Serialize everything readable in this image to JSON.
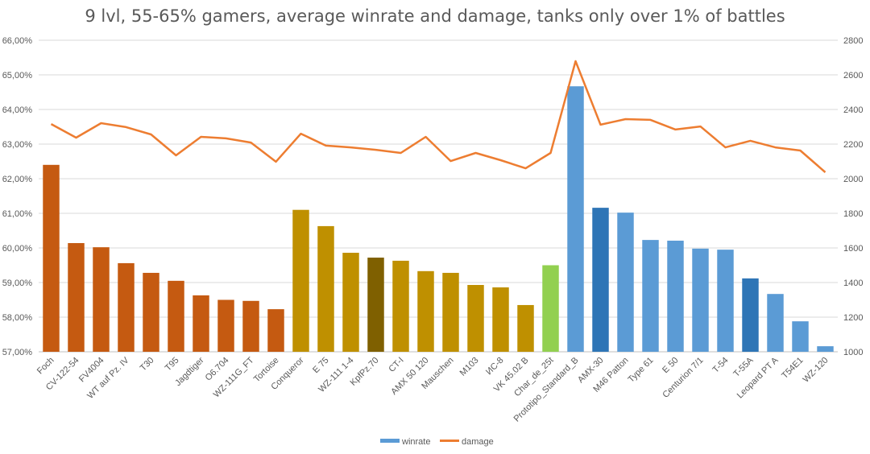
{
  "chart_data": {
    "type": "bar",
    "title": "9 lvl, 55-65% gamers, average winrate and damage, tanks only over 1% of battles",
    "xlabel": "",
    "ylabel": "",
    "y2label": "",
    "ylim": [
      57,
      66
    ],
    "y2lim": [
      1000,
      2800
    ],
    "yticks": [
      "57,00%",
      "58,00%",
      "59,00%",
      "60,00%",
      "61,00%",
      "62,00%",
      "63,00%",
      "64,00%",
      "65,00%",
      "66,00%"
    ],
    "y2ticks": [
      "1000",
      "1200",
      "1400",
      "1600",
      "1800",
      "2000",
      "2200",
      "2400",
      "2600",
      "2800"
    ],
    "grid": true,
    "legend_position": "bottom",
    "categories": [
      "Foch",
      "CV-122-54",
      "FV4004",
      "WT auf Pz. IV",
      "T30",
      "T95",
      "Jagdtiger",
      "O6.704",
      "WZ-111G_FT",
      "Tortoise",
      "Conqueror",
      "E 75",
      "WZ-111 1-4",
      "KpfPz.70",
      "CT-I",
      "AMX 50 120",
      "Mauschen",
      "M103",
      "ИС-8",
      "VK 45.02 B",
      "Char_de_25t",
      "Prototipo_Standard_B",
      "AMX-30",
      "M46 Patton",
      "Type 61",
      "E 50",
      "Centurion 7/1",
      "T-54",
      "T-55A",
      "Leopard PT A",
      "T54E1",
      "WZ-120"
    ],
    "series": [
      {
        "name": "winrate",
        "type": "bar",
        "axis": "left",
        "unit": "%",
        "legend_color": "#5b9bd5",
        "values": [
          62.4,
          60.14,
          60.02,
          59.56,
          59.28,
          59.05,
          58.63,
          58.5,
          58.47,
          58.23,
          61.1,
          60.63,
          59.86,
          59.72,
          59.63,
          59.33,
          59.28,
          58.93,
          58.86,
          58.35,
          59.5,
          64.67,
          61.16,
          61.02,
          60.23,
          60.21,
          59.98,
          59.95,
          59.12,
          58.67,
          57.88,
          57.16
        ],
        "bar_colors": [
          "#c55a11",
          "#c55a11",
          "#c55a11",
          "#c55a11",
          "#c55a11",
          "#c55a11",
          "#c55a11",
          "#c55a11",
          "#c55a11",
          "#c55a11",
          "#bf9000",
          "#bf9000",
          "#bf9000",
          "#7f6000",
          "#bf9000",
          "#bf9000",
          "#bf9000",
          "#bf9000",
          "#bf9000",
          "#bf9000",
          "#92d050",
          "#5b9bd5",
          "#2e75b6",
          "#5b9bd5",
          "#5b9bd5",
          "#5b9bd5",
          "#5b9bd5",
          "#5b9bd5",
          "#2e75b6",
          "#5b9bd5",
          "#5b9bd5",
          "#5b9bd5"
        ]
      },
      {
        "name": "damage",
        "type": "line",
        "axis": "right",
        "color": "#ed7d31",
        "values": [
          2316,
          2237,
          2321,
          2298,
          2256,
          2135,
          2242,
          2233,
          2209,
          2098,
          2260,
          2191,
          2181,
          2167,
          2149,
          2242,
          2102,
          2149,
          2107,
          2060,
          2149,
          2679,
          2312,
          2344,
          2340,
          2284,
          2302,
          2181,
          2219,
          2181,
          2163,
          2037
        ]
      }
    ]
  }
}
